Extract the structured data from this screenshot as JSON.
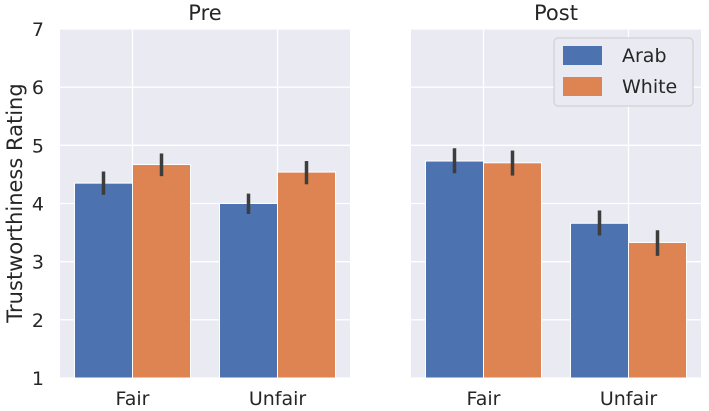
{
  "chart_data": {
    "type": "bar",
    "ylabel": "Trustworthiness Rating",
    "ylim": [
      1,
      7
    ],
    "yticks": [
      "1",
      "2",
      "3",
      "4",
      "5",
      "6",
      "7"
    ],
    "grid": true,
    "legend": {
      "placement": "top-right",
      "panel": "Post",
      "entries": [
        {
          "name": "Arab",
          "color": "#4c72b0"
        },
        {
          "name": "White",
          "color": "#dd8452"
        }
      ]
    },
    "panels": [
      {
        "title": "Pre",
        "categories": [
          "Fair",
          "Unfair"
        ],
        "series": [
          {
            "name": "Arab",
            "values": [
              4.35,
              4.0
            ],
            "err_low": [
              4.15,
              3.82
            ],
            "err_high": [
              4.55,
              4.17
            ]
          },
          {
            "name": "White",
            "values": [
              4.67,
              4.54
            ],
            "err_low": [
              4.47,
              4.33
            ],
            "err_high": [
              4.86,
              4.73
            ]
          }
        ]
      },
      {
        "title": "Post",
        "categories": [
          "Fair",
          "Unfair"
        ],
        "series": [
          {
            "name": "Arab",
            "values": [
              4.73,
              3.66
            ],
            "err_low": [
              4.52,
              3.45
            ],
            "err_high": [
              4.95,
              3.88
            ]
          },
          {
            "name": "White",
            "values": [
              4.7,
              3.33
            ],
            "err_low": [
              4.48,
              3.1
            ],
            "err_high": [
              4.91,
              3.54
            ]
          }
        ]
      }
    ]
  }
}
